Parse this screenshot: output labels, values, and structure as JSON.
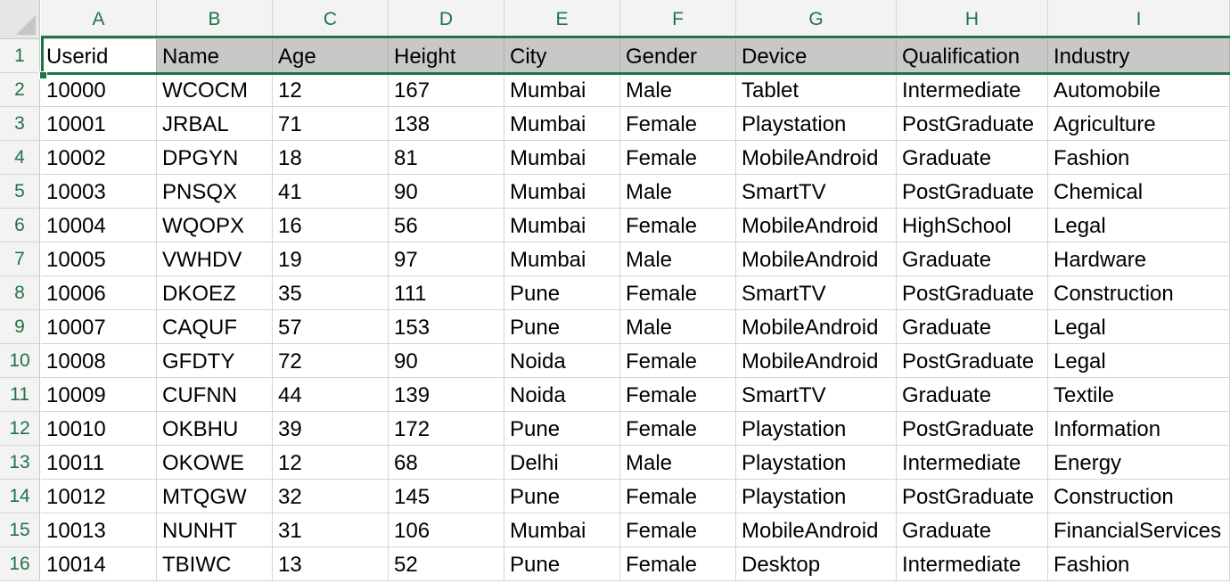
{
  "sheet": {
    "columns": [
      "A",
      "B",
      "C",
      "D",
      "E",
      "F",
      "G",
      "H",
      "I"
    ],
    "row_numbers": [
      "1",
      "2",
      "3",
      "4",
      "5",
      "6",
      "7",
      "8",
      "9",
      "10",
      "11",
      "12",
      "13",
      "14",
      "15",
      "16"
    ],
    "header_row": [
      "Userid",
      "Name",
      "Age",
      "Height",
      "City",
      "Gender",
      "Device",
      "Qualification",
      "Industry"
    ],
    "rows": [
      [
        "10000",
        "WCOCM",
        "12",
        "167",
        "Mumbai",
        "Male",
        "Tablet",
        "Intermediate",
        "Automobile"
      ],
      [
        "10001",
        "JRBAL",
        "71",
        "138",
        "Mumbai",
        "Female",
        "Playstation",
        "PostGraduate",
        "Agriculture"
      ],
      [
        "10002",
        "DPGYN",
        "18",
        "81",
        "Mumbai",
        "Female",
        "MobileAndroid",
        "Graduate",
        "Fashion"
      ],
      [
        "10003",
        "PNSQX",
        "41",
        "90",
        "Mumbai",
        "Male",
        "SmartTV",
        "PostGraduate",
        "Chemical"
      ],
      [
        "10004",
        "WQOPX",
        "16",
        "56",
        "Mumbai",
        "Female",
        "MobileAndroid",
        "HighSchool",
        "Legal"
      ],
      [
        "10005",
        "VWHDV",
        "19",
        "97",
        "Mumbai",
        "Male",
        "MobileAndroid",
        "Graduate",
        "Hardware"
      ],
      [
        "10006",
        "DKOEZ",
        "35",
        "111",
        "Pune",
        "Female",
        "SmartTV",
        "PostGraduate",
        "Construction"
      ],
      [
        "10007",
        "CAQUF",
        "57",
        "153",
        "Pune",
        "Male",
        "MobileAndroid",
        "Graduate",
        "Legal"
      ],
      [
        "10008",
        "GFDTY",
        "72",
        "90",
        "Noida",
        "Female",
        "MobileAndroid",
        "PostGraduate",
        "Legal"
      ],
      [
        "10009",
        "CUFNN",
        "44",
        "139",
        "Noida",
        "Female",
        "SmartTV",
        "Graduate",
        "Textile"
      ],
      [
        "10010",
        "OKBHU",
        "39",
        "172",
        "Pune",
        "Female",
        "Playstation",
        "PostGraduate",
        "Information"
      ],
      [
        "10011",
        "OKOWE",
        "12",
        "68",
        "Delhi",
        "Male",
        "Playstation",
        "Intermediate",
        "Energy"
      ],
      [
        "10012",
        "MTQGW",
        "32",
        "145",
        "Pune",
        "Female",
        "Playstation",
        "PostGraduate",
        "Construction"
      ],
      [
        "10013",
        "NUNHT",
        "31",
        "106",
        "Mumbai",
        "Female",
        "MobileAndroid",
        "Graduate",
        "FinancialServices"
      ],
      [
        "10014",
        "TBIWC",
        "13",
        "52",
        "Pune",
        "Female",
        "Desktop",
        "Intermediate",
        "Fashion"
      ]
    ],
    "selected_row": "1",
    "accent_color": "#217346",
    "header_fill": "#c8c8c8"
  }
}
